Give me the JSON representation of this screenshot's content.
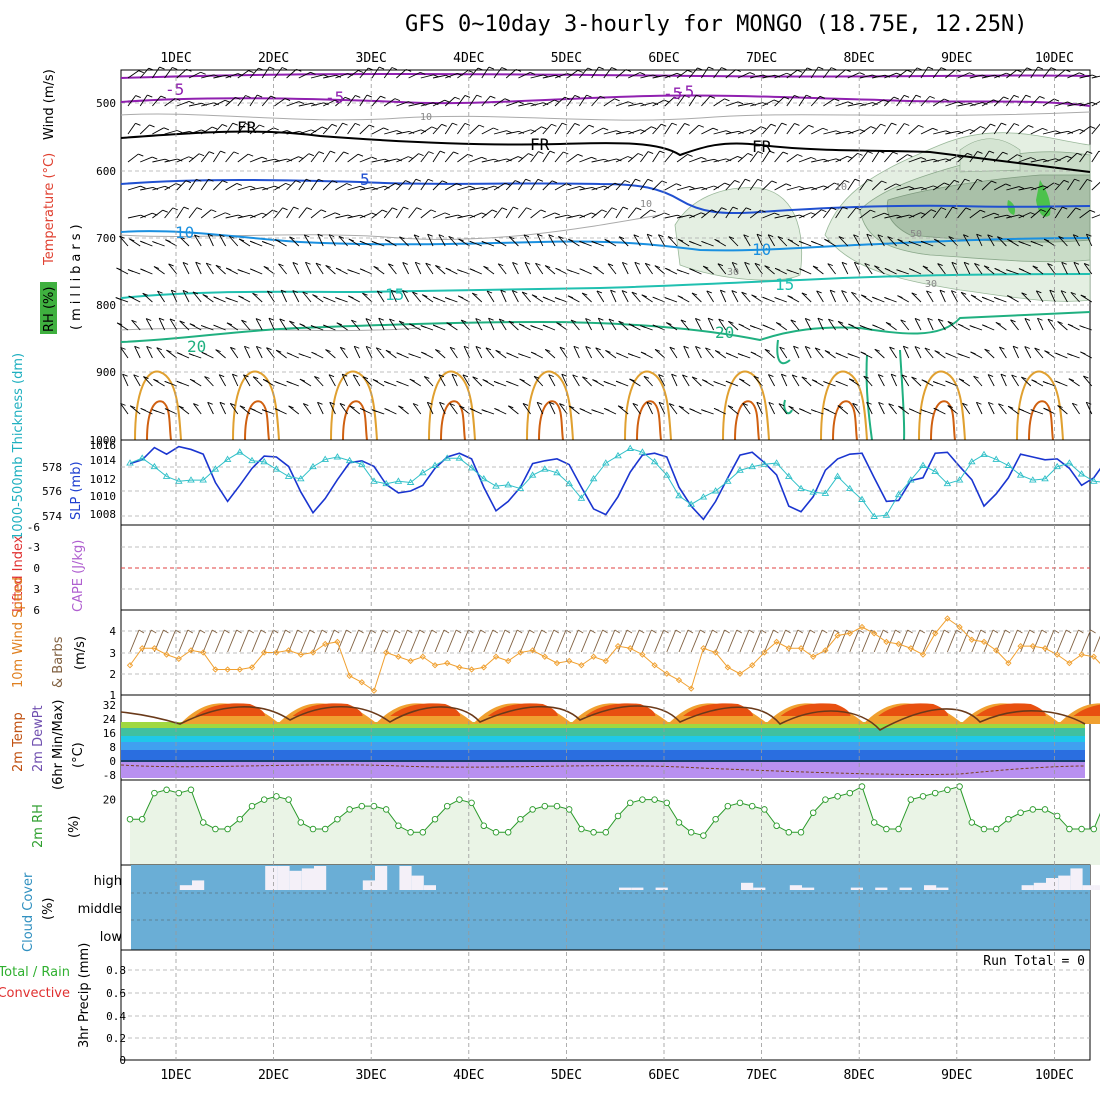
{
  "title": "GFS 0~10day 3-hourly for MONGO (18.75E, 12.25N)",
  "dates": [
    "1DEC",
    "2DEC",
    "3DEC",
    "4DEC",
    "5DEC",
    "6DEC",
    "7DEC",
    "8DEC",
    "9DEC",
    "10DEC"
  ],
  "colors": {
    "temp_label": "#e04030",
    "rh_label": "#30b030",
    "wind_label": "#000000",
    "slp_label": "#2040d0",
    "thick_label": "#20b0c0",
    "li_label": "#e03030",
    "cape_label": "#b060d0",
    "wind10_label": "#e08020",
    "barbs_label": "#806040",
    "temp2m_label": "#c05010",
    "rh2m_label": "#30a030",
    "cloud_label": "#3090c0",
    "precip_total_label": "#30b030",
    "precip_conv_label": "#e03030",
    "cloud_fill": "#6aaed6",
    "cloud_bar": "#f4f0f8"
  },
  "upper_panel": {
    "ylabels": {
      "temperature": "Temperature (°C)",
      "wind": "Wind (m/s)",
      "rh": "RH (%)",
      "units": "(millibars)"
    },
    "y_ticks": [
      "500",
      "600",
      "700",
      "800",
      "900",
      "1000"
    ],
    "contour_labels": [
      "-5",
      "-5",
      "FR",
      "FR",
      "FR",
      "-5",
      "-5",
      "5",
      "10",
      "10",
      "15",
      "15",
      "20",
      "20",
      "10",
      "10",
      "30",
      "30",
      "50",
      "10"
    ]
  },
  "slp_panel": {
    "ylabels": {
      "thickness": "1000-500mb Thickness (dm)",
      "slp": "SLP (mb)"
    },
    "left_ticks": [
      "578",
      "576",
      "574"
    ],
    "right_ticks": [
      "1016",
      "1014",
      "1012",
      "1010",
      "1008"
    ]
  },
  "li_panel": {
    "ylabels": {
      "li": "Lifted Index",
      "cape": "CAPE (J/kg)"
    },
    "ticks": [
      "-6",
      "-3",
      "0",
      "3",
      "6"
    ]
  },
  "wind_panel": {
    "ylabels": {
      "speed": "10m Wind Speed",
      "barbs": "& Barbs",
      "units": "(m/s)"
    },
    "ticks": [
      "4",
      "3",
      "2",
      "1"
    ]
  },
  "temp_panel": {
    "ylabels": {
      "temp": "2m Temp",
      "dewpt": "2m DewPt",
      "minmax": "(6hr Min/Max)",
      "units": "(°C)"
    },
    "ticks": [
      "32",
      "24",
      "16",
      "8",
      "0",
      "-8"
    ]
  },
  "rh_panel": {
    "ylabels": {
      "rh": "2m RH",
      "units": "(%)"
    },
    "ticks": [
      "20"
    ]
  },
  "cloud_panel": {
    "ylabels": {
      "cloud": "Cloud Cover",
      "units": "(%)"
    },
    "levels": [
      "high",
      "middle",
      "low"
    ]
  },
  "precip_panel": {
    "ylabels": {
      "total": "Total / Rain",
      "convective": "Convective",
      "units": "3hr Precip (mm)"
    },
    "ticks": [
      "0.8",
      "0.6",
      "0.4",
      "0.2",
      "0"
    ],
    "run_total": "Run Total = 0"
  },
  "chart_data": [
    {
      "type": "line",
      "name": "slp",
      "x_hours": [
        0,
        3,
        6,
        9,
        12,
        15,
        18,
        21,
        24,
        27,
        30,
        33,
        36,
        39,
        42,
        45,
        48,
        51,
        54,
        57,
        60,
        63,
        66,
        69,
        72,
        75,
        78,
        81,
        84,
        87,
        90,
        93,
        96,
        99,
        102,
        105,
        108,
        111,
        114,
        117,
        120,
        123,
        126,
        129,
        132,
        135,
        138,
        141,
        144,
        147,
        150,
        153,
        156,
        159,
        162,
        165,
        168,
        171,
        174,
        177,
        180,
        183,
        186,
        189,
        192,
        195,
        198,
        201,
        204,
        207,
        210,
        213,
        216,
        219,
        222,
        225,
        228,
        231,
        234,
        237,
        240
      ],
      "series": [
        {
          "values": [
            1013.5,
            1013.9,
            1015.2,
            1014.5,
            1015.3,
            1015.0,
            1014.5,
            1011.5,
            1009.5,
            1011.2,
            1013.0,
            1014.3,
            1014.2,
            1013.2,
            1010.5,
            1008.3,
            1009.8,
            1011.8,
            1013.6,
            1013.8,
            1013.2,
            1011.3,
            1010.4,
            1010.6,
            1011.2,
            1013.0,
            1014.2,
            1014.6,
            1014.0,
            1011.0,
            1008.5,
            1009.5,
            1011.0,
            1013.5,
            1013.8,
            1014.0,
            1013.4,
            1011.0,
            1008.7,
            1008.1,
            1010.0,
            1012.6,
            1014.4,
            1014.6,
            1014.2,
            1011.0,
            1009.0,
            1007.6,
            1009.5,
            1012.0,
            1014.4,
            1014.7,
            1013.6,
            1012.3,
            1009.0,
            1008.4,
            1010.0,
            1012.8,
            1014.0,
            1014.5,
            1014.6,
            1012.0,
            1009.5,
            1009.6,
            1011.7,
            1012.0,
            1014.6,
            1014.7,
            1013.2,
            1011.8,
            1009.0,
            1010.3,
            1012.0,
            1014.5,
            1014.2,
            1013.9,
            1014.0,
            1013.0,
            1011.2,
            1012.0,
            1013.8
          ]
        }
      ],
      "ylim": [
        1007,
        1016
      ]
    },
    {
      "type": "line",
      "name": "thickness",
      "x_hours": [
        0,
        3,
        6,
        9,
        12,
        15,
        18,
        21,
        24,
        27,
        30,
        33,
        36,
        39,
        42,
        45,
        48,
        51,
        54,
        57,
        60,
        63,
        66,
        69,
        72,
        75,
        78,
        81,
        84,
        87,
        90,
        93,
        96,
        99,
        102,
        105,
        108,
        111,
        114,
        117,
        120,
        123,
        126,
        129,
        132,
        135,
        138,
        141,
        144,
        147,
        150,
        153,
        156,
        159,
        162,
        165,
        168,
        171,
        174,
        177,
        180,
        183,
        186,
        189,
        192,
        195,
        198,
        201,
        204,
        207,
        210,
        213,
        216,
        219,
        222,
        225,
        228,
        231,
        234,
        237,
        240
      ],
      "series": [
        {
          "values": [
            578.1,
            578.5,
            577.8,
            577.0,
            576.6,
            576.7,
            576.7,
            577.6,
            578.4,
            579.0,
            578.3,
            578.2,
            577.6,
            577.0,
            576.8,
            577.8,
            578.4,
            578.6,
            578.3,
            578.0,
            576.6,
            576.4,
            576.6,
            576.5,
            577.3,
            577.9,
            578.5,
            578.5,
            577.7,
            576.8,
            576.2,
            576.3,
            576.0,
            577.1,
            577.6,
            577.3,
            576.4,
            575.2,
            576.8,
            578.1,
            578.7,
            579.3,
            579.0,
            578.2,
            577.1,
            575.4,
            574.7,
            575.3,
            575.8,
            576.6,
            577.5,
            577.8,
            578.0,
            578.1,
            577.0,
            576.0,
            575.7,
            575.6,
            577.0,
            576.0,
            575.1,
            573.7,
            573.8,
            575.5,
            576.7,
            577.9,
            577.4,
            576.4,
            576.7,
            578.2,
            578.8,
            578.4,
            577.9,
            577.1,
            576.7,
            576.8,
            577.8,
            578.1,
            577.2,
            576.6,
            576.5
          ]
        }
      ],
      "ylim": [
        573,
        580
      ]
    },
    {
      "type": "line",
      "name": "10m wind speed",
      "x_hours": [
        0,
        3,
        6,
        9,
        12,
        15,
        18,
        21,
        24,
        27,
        30,
        33,
        36,
        39,
        42,
        45,
        48,
        51,
        54,
        57,
        60,
        63,
        66,
        69,
        72,
        75,
        78,
        81,
        84,
        87,
        90,
        93,
        96,
        99,
        102,
        105,
        108,
        111,
        114,
        117,
        120,
        123,
        126,
        129,
        132,
        135,
        138,
        141,
        144,
        147,
        150,
        153,
        156,
        159,
        162,
        165,
        168,
        171,
        174,
        177,
        180,
        183,
        186,
        189,
        192,
        195,
        198,
        201,
        204,
        207,
        210,
        213,
        216,
        219,
        222,
        225,
        228,
        231,
        234,
        237,
        240
      ],
      "series": [
        {
          "values": [
            2.4,
            3.2,
            3.2,
            2.9,
            2.7,
            3.1,
            3.0,
            2.2,
            2.2,
            2.2,
            2.3,
            3.0,
            3.0,
            3.1,
            2.9,
            3.0,
            3.4,
            3.5,
            1.9,
            1.6,
            1.2,
            3.0,
            2.8,
            2.6,
            2.8,
            2.4,
            2.5,
            2.3,
            2.2,
            2.3,
            2.8,
            2.6,
            3.0,
            3.1,
            2.8,
            2.5,
            2.6,
            2.4,
            2.8,
            2.6,
            3.3,
            3.2,
            2.9,
            2.4,
            2.0,
            1.7,
            1.3,
            3.2,
            3.0,
            2.3,
            2.0,
            2.4,
            3.0,
            3.5,
            3.2,
            3.2,
            2.8,
            3.1,
            3.8,
            3.9,
            4.2,
            3.9,
            3.5,
            3.4,
            3.2,
            2.9,
            3.9,
            4.6,
            4.2,
            3.6,
            3.5,
            3.1,
            2.5,
            3.3,
            3.3,
            3.2,
            2.9,
            2.5,
            2.9,
            2.8,
            2.2
          ]
        }
      ],
      "ylim": [
        1,
        5
      ]
    },
    {
      "type": "line",
      "name": "2m RH",
      "x_hours": [
        0,
        3,
        6,
        9,
        12,
        15,
        18,
        21,
        24,
        27,
        30,
        33,
        36,
        39,
        42,
        45,
        48,
        51,
        54,
        57,
        60,
        63,
        66,
        69,
        72,
        75,
        78,
        81,
        84,
        87,
        90,
        93,
        96,
        99,
        102,
        105,
        108,
        111,
        114,
        117,
        120,
        123,
        126,
        129,
        132,
        135,
        138,
        141,
        144,
        147,
        150,
        153,
        156,
        159,
        162,
        165,
        168,
        171,
        174,
        177,
        180,
        183,
        186,
        189,
        192,
        195,
        198,
        201,
        204,
        207,
        210,
        213,
        216,
        219,
        222,
        225,
        228,
        231,
        234,
        237,
        240
      ],
      "series": [
        {
          "values": [
            14,
            14,
            22,
            23,
            22,
            23,
            13,
            11,
            11,
            14,
            18,
            20,
            21,
            20,
            13,
            11,
            11,
            14,
            17,
            18,
            18,
            17,
            12,
            10,
            10,
            14,
            18,
            20,
            19,
            12,
            10,
            10,
            14,
            17,
            18,
            18,
            17,
            11,
            10,
            10,
            15,
            19,
            20,
            20,
            19,
            13,
            10,
            9,
            14,
            18,
            19,
            18,
            17,
            12,
            10,
            10,
            16,
            20,
            21,
            22,
            24,
            13,
            11,
            11,
            20,
            21,
            22,
            23,
            24,
            13,
            11,
            11,
            14,
            16,
            17,
            17,
            15,
            11,
            11,
            11,
            20
          ]
        }
      ],
      "ylim": [
        0,
        26
      ]
    }
  ]
}
